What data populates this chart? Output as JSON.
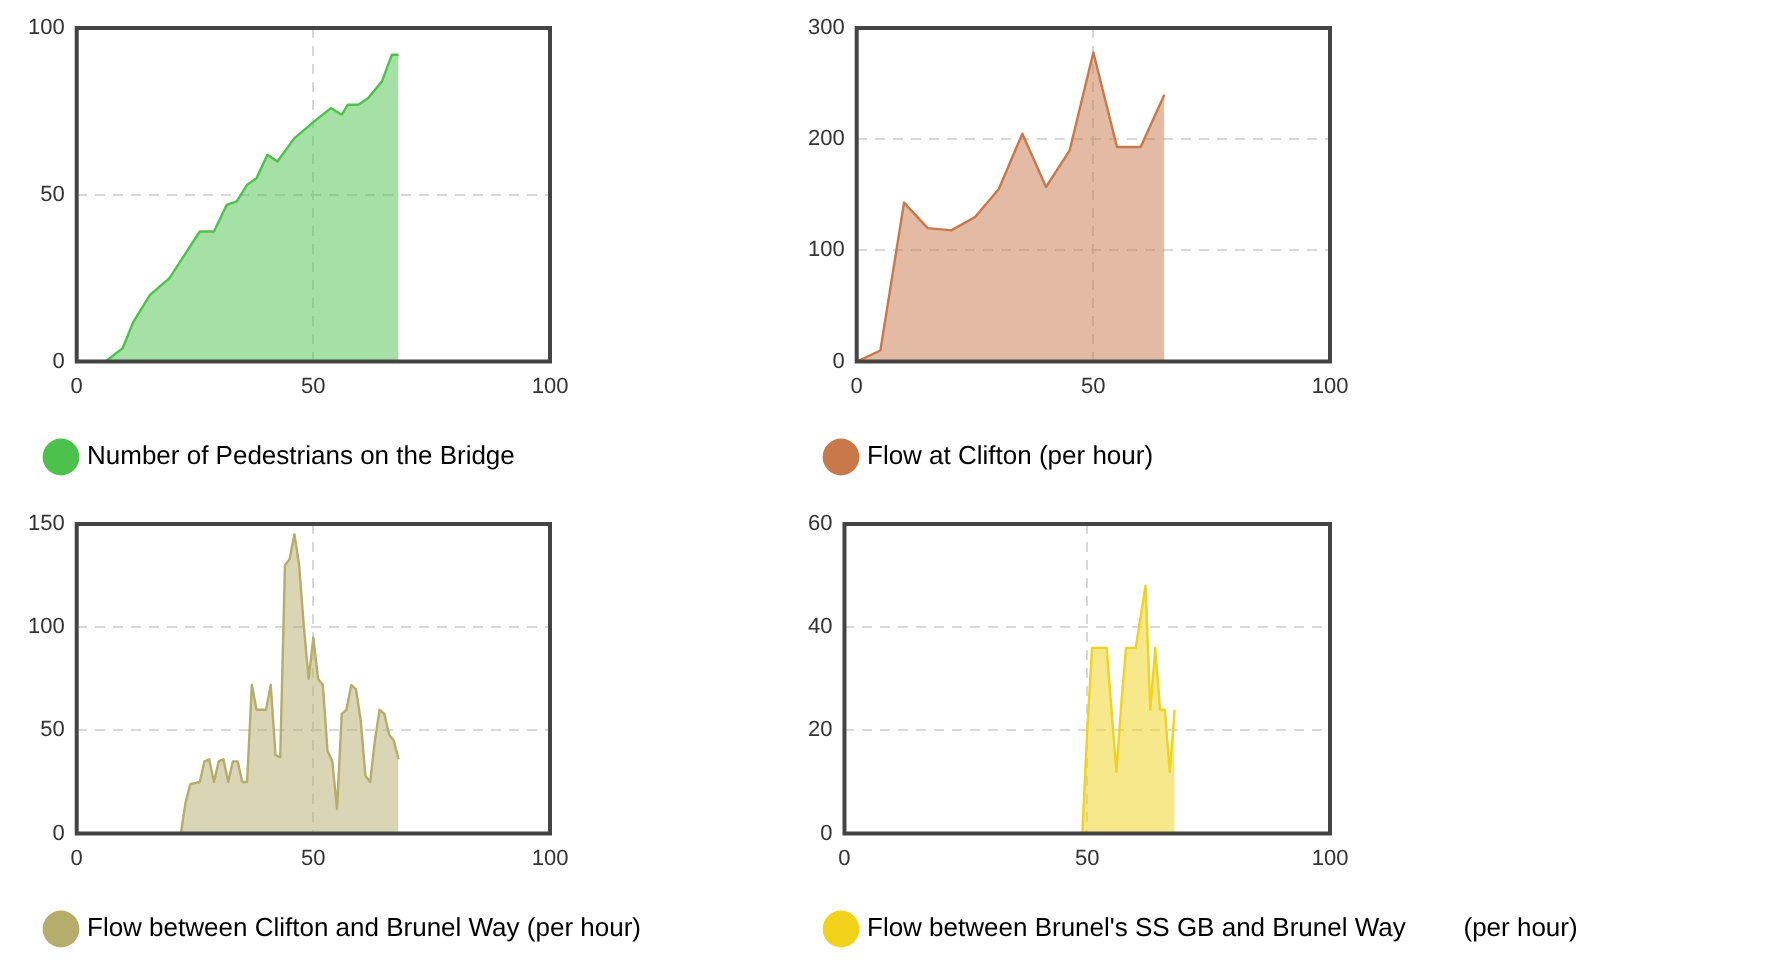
{
  "chart_data": [
    {
      "type": "area",
      "xlim": [
        0,
        100
      ],
      "xticks": [
        0,
        50,
        100
      ],
      "ylim": [
        0,
        100
      ],
      "yticks": [
        0,
        50,
        100
      ],
      "grid": true,
      "legend": "bottom",
      "series": [
        {
          "name": "Number of Pedestrians on the Bridge",
          "color": "#4cc24c",
          "x": [
            6,
            9.7,
            12,
            15.5,
            19.6,
            26,
            29,
            31.7,
            33.8,
            36,
            38,
            40.3,
            42.4,
            46,
            50.2,
            53.7,
            56,
            57.3,
            59.5,
            61.6,
            64.5,
            66.6,
            68
          ],
          "values": [
            0,
            4,
            12,
            20,
            25,
            39,
            39,
            47,
            48,
            53,
            55,
            62,
            60,
            67,
            72,
            76,
            74,
            77,
            77,
            79,
            84,
            92,
            92
          ]
        }
      ]
    },
    {
      "type": "area",
      "xlim": [
        0,
        100
      ],
      "xticks": [
        0,
        50,
        100
      ],
      "ylim": [
        0,
        300
      ],
      "yticks": [
        0,
        100,
        200,
        300
      ],
      "grid": true,
      "legend": "bottom",
      "series": [
        {
          "name": "Flow at Clifton (per hour)",
          "color": "#c8784a",
          "x": [
            0,
            5,
            10,
            15,
            20,
            25,
            30,
            35,
            40,
            45,
            50,
            55,
            60,
            65
          ],
          "values": [
            0,
            10,
            143,
            120,
            118,
            130,
            155,
            205,
            157,
            190,
            278,
            193,
            193,
            240
          ]
        }
      ]
    },
    {
      "type": "area",
      "xlim": [
        0,
        100
      ],
      "xticks": [
        0,
        50,
        100
      ],
      "ylim": [
        0,
        150
      ],
      "yticks": [
        0,
        50,
        100,
        150
      ],
      "grid": true,
      "legend": "bottom",
      "series": [
        {
          "name": "Flow between Clifton and Brunel Way (per hour)",
          "color": "#b5ad6c",
          "x": [
            22,
            23,
            24,
            26,
            27,
            28,
            29,
            30,
            31,
            32,
            33,
            34,
            35,
            36,
            37,
            38,
            40,
            41,
            42,
            43,
            44,
            45,
            46,
            47,
            48,
            49,
            50,
            51,
            52,
            53,
            54,
            55,
            56,
            57,
            58,
            59,
            60,
            61,
            62,
            63,
            64,
            65,
            66,
            67,
            68
          ],
          "values": [
            0,
            15,
            24,
            25,
            35,
            36,
            25,
            35,
            36,
            25,
            35,
            35,
            25,
            25,
            72,
            60,
            60,
            72,
            38,
            37,
            130,
            133,
            145,
            130,
            100,
            75,
            95,
            75,
            72,
            40,
            35,
            12,
            58,
            60,
            72,
            70,
            55,
            28,
            25,
            45,
            60,
            58,
            48,
            45,
            36
          ]
        }
      ]
    },
    {
      "type": "area",
      "xlim": [
        0,
        100
      ],
      "xticks": [
        0,
        50,
        100
      ],
      "ylim": [
        0,
        60
      ],
      "yticks": [
        0,
        20,
        40,
        60
      ],
      "grid": true,
      "legend": "bottom",
      "series": [
        {
          "name": "Flow between Brunel's SS GB and Brunel Way        (per hour)",
          "color": "#f2d21a",
          "x": [
            49,
            50,
            51,
            53,
            54,
            56,
            57,
            58,
            60,
            61,
            62,
            63,
            64,
            65,
            66,
            67,
            68
          ],
          "values": [
            0,
            20,
            36,
            36,
            36,
            12,
            25,
            36,
            36,
            42,
            48,
            24,
            36,
            24,
            24,
            12,
            24
          ]
        }
      ]
    }
  ]
}
